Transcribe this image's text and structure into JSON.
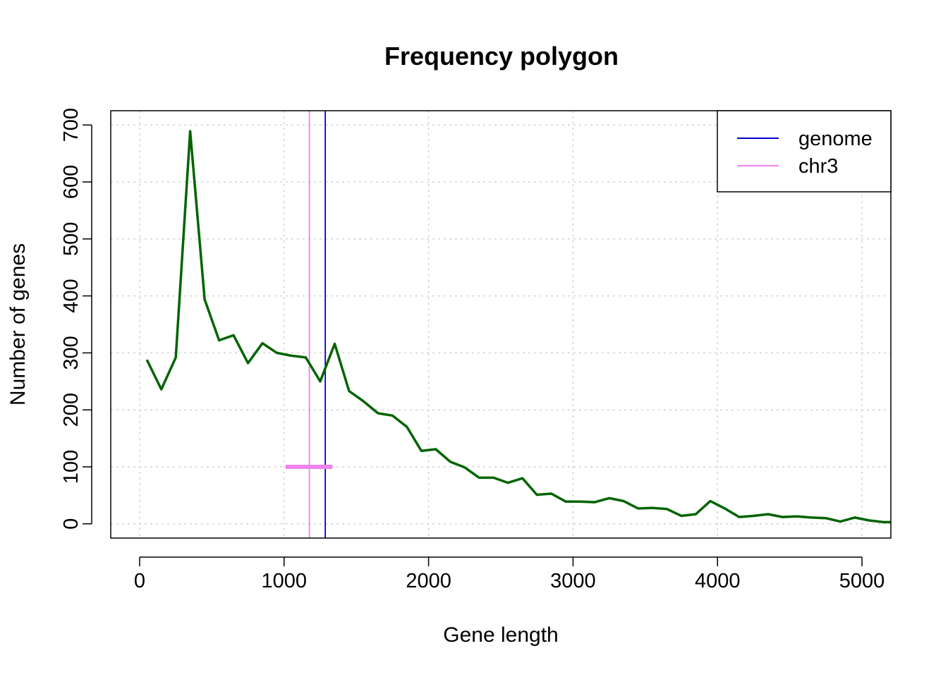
{
  "chart_data": {
    "type": "line",
    "title": "Frequency polygon",
    "xlabel": "Gene length",
    "ylabel": "Number of genes",
    "xlim": [
      -200,
      5200
    ],
    "ylim": [
      -25,
      725
    ],
    "x_ticks": [
      0,
      1000,
      2000,
      3000,
      4000,
      5000
    ],
    "y_ticks": [
      0,
      100,
      200,
      300,
      400,
      500,
      600,
      700
    ],
    "x_tick_labels": [
      "0",
      "1000",
      "2000",
      "3000",
      "4000",
      "5000"
    ],
    "y_tick_labels": [
      "0",
      "100",
      "200",
      "300",
      "400",
      "500",
      "600",
      "700"
    ],
    "grid": true,
    "series": [
      {
        "color": "#006400",
        "x": [
          50,
          150,
          250,
          350,
          450,
          550,
          650,
          750,
          850,
          950,
          1050,
          1150,
          1250,
          1350,
          1450,
          1550,
          1650,
          1750,
          1850,
          1950,
          2050,
          2150,
          2250,
          2350,
          2450,
          2550,
          2650,
          2750,
          2850,
          2950,
          3050,
          3150,
          3250,
          3350,
          3450,
          3550,
          3650,
          3750,
          3850,
          3950,
          4050,
          4150,
          4250,
          4350,
          4450,
          4550,
          4650,
          4750,
          4850,
          4950,
          5050,
          5150,
          5250
        ],
        "values": [
          288,
          236,
          292,
          689,
          394,
          322,
          331,
          282,
          317,
          300,
          295,
          292,
          250,
          316,
          233,
          215,
          194,
          190,
          170,
          128,
          131,
          109,
          99,
          81,
          81,
          72,
          80,
          51,
          53,
          39,
          39,
          38,
          45,
          40,
          27,
          28,
          26,
          14,
          17,
          40,
          27,
          12,
          14,
          17,
          12,
          13,
          11,
          10,
          4,
          11,
          6,
          3,
          3
        ]
      }
    ],
    "vlines": [
      {
        "name": "genome",
        "x": 1285,
        "color": "#0000CD"
      },
      {
        "name": "chr3",
        "x": 1175,
        "color": "#EE82EE"
      }
    ],
    "segment": {
      "x0": 1010,
      "x1": 1335,
      "y": 100,
      "color": "#EE82EE"
    },
    "legend": {
      "position": "top-right",
      "entries": [
        {
          "label": "genome",
          "color": "#0000CD"
        },
        {
          "label": "chr3",
          "color": "#EE82EE"
        }
      ]
    }
  }
}
